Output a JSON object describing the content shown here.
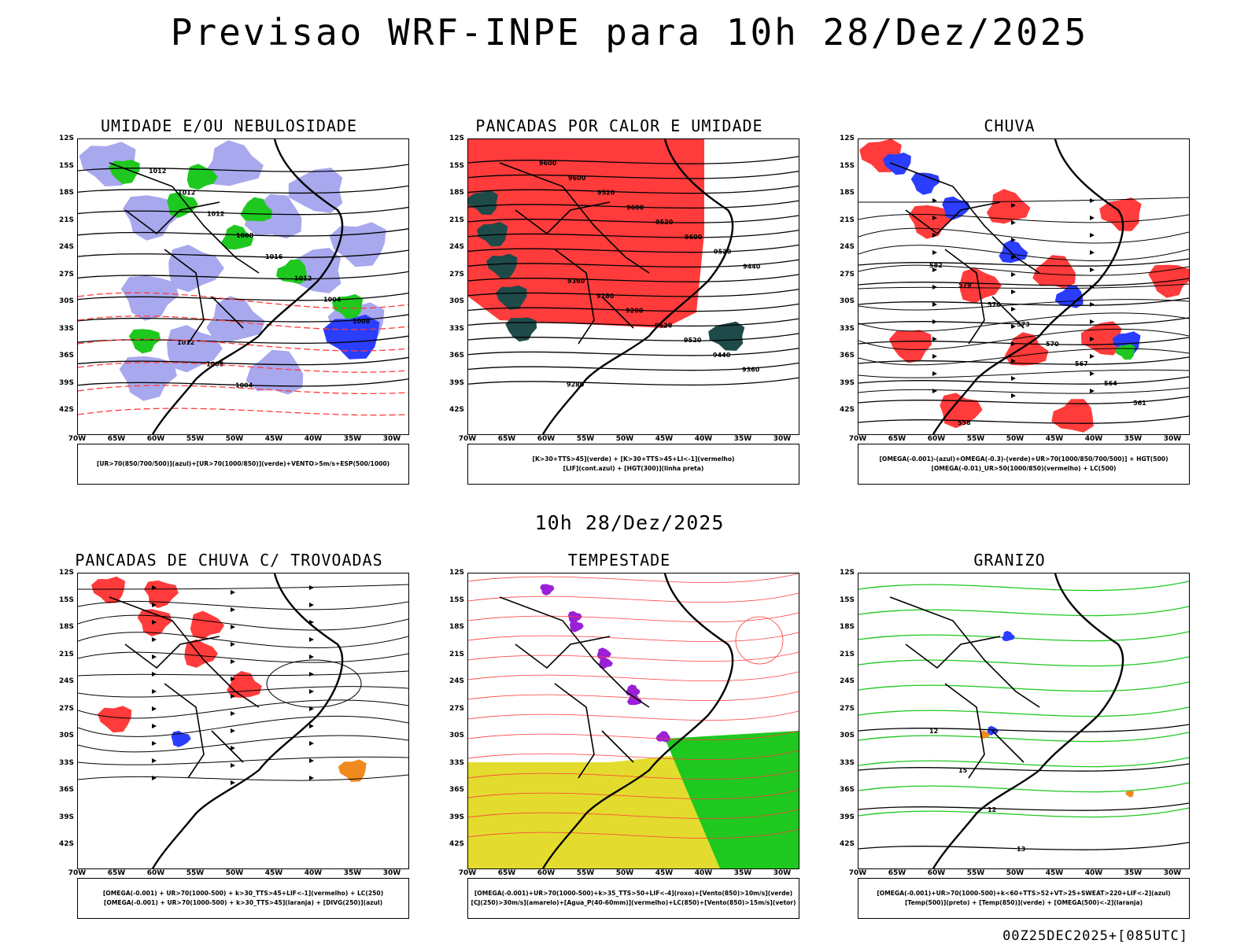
{
  "title": "Previsao WRF-INPE  para 10h 28/Dez/2025",
  "mid_title": "10h 28/Dez/2025",
  "footer": "00Z25DEC2025+[085UTC]",
  "axes": {
    "lat_labels": [
      "12S",
      "15S",
      "18S",
      "21S",
      "24S",
      "27S",
      "30S",
      "33S",
      "36S",
      "39S",
      "42S"
    ],
    "lon_labels": [
      "70W",
      "65W",
      "60W",
      "55W",
      "50W",
      "45W",
      "40W",
      "35W",
      "30W"
    ]
  },
  "colors": {
    "blue": "#2b3dff",
    "lavender": "#a8a8ee",
    "green": "#1fc81f",
    "red": "#ff3b3b",
    "darkteal": "#1f4a4a",
    "orange": "#f08a1e",
    "purple": "#9a1fd6",
    "yellow": "#e3dc2e"
  },
  "panels": [
    {
      "title": "UMIDADE E/OU NEBULOSIDADE",
      "legend": [
        "[UR>70(850/700/500)](azul)+[UR>70(1000/850)](verde)+VENTO>5m/s+ESP(500/1000)"
      ],
      "contours": [
        "1012",
        "1012",
        "1012",
        "1008",
        "1016",
        "1012",
        "1004",
        "1008",
        "1012",
        "1008",
        "1004"
      ]
    },
    {
      "title": "PANCADAS POR CALOR E UMIDADE",
      "legend": [
        "[K>30+TTS>45](verde) + [K>30+TTS>45+LI<-1](vermelho)",
        "[LIF](cont.azul) + [HGT(300)](linha preta)"
      ],
      "contours": [
        "9600",
        "9600",
        "9520",
        "9600",
        "9520",
        "9600",
        "9520",
        "9440",
        "9360",
        "9280",
        "9200",
        "9120",
        "9520",
        "9440",
        "9360",
        "9280"
      ]
    },
    {
      "title": "CHUVA",
      "legend": [
        "[OMEGA(-0.001)-(azul)+OMEGA(-0.3)-(verde)+UR>70(1000/850/700/500)] + HGT(500)",
        "[OMEGA(-0.01)_UR>50(1000/850)(vermelho) + LC(500)"
      ],
      "contours": [
        "582",
        "579",
        "576",
        "573",
        "570",
        "567",
        "564",
        "561",
        "558",
        "555",
        "552",
        "549"
      ]
    },
    {
      "title": "PANCADAS DE CHUVA C/ TROVOADAS",
      "legend": [
        "[OMEGA(-0.001) + UR>70(1000-500) + k>30_TTS>45+LIF<-1](vermelho) + LC(250)",
        "[OMEGA(-0.001) + UR>70(1000-500) + k>30_TTS>45](laranja) + [DIVG(250)](azul)"
      ]
    },
    {
      "title": "TEMPESTADE",
      "legend": [
        "[OMEGA(-0.001)+UR>70(1000-500)+k>35_TTS>50+LIF<-4](roxo)+[Vento(850)>10m/s](verde)",
        "[CJ(250)>30m/s](amarelo)+[Agua_P(40-60mm)](vermelho)+LC(850)+[Vento(850)>15m/s](vetor)"
      ]
    },
    {
      "title": "GRANIZO",
      "legend": [
        "[OMEGA(-0.001)+UR>70(1000-500)+k<60+TTS>52+VT>25+SWEAT>220+LIF<-2](azul)",
        "[Temp(500)](preto) + [Temp(850)](verde) + [OMEGA(500)<-2](laranja)"
      ],
      "contours": [
        "12",
        "15",
        "12",
        "13",
        "15",
        "12"
      ]
    }
  ]
}
